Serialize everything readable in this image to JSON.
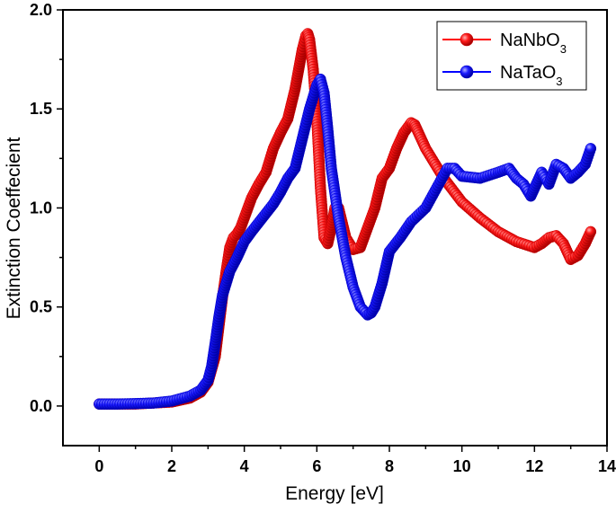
{
  "chart_data": {
    "type": "scatter",
    "title": "",
    "xlabel": "Energy [eV]",
    "ylabel": "Extinction Coeffecient",
    "xlim": [
      -1,
      14
    ],
    "ylim": [
      -0.2,
      2.0
    ],
    "xticks": [
      0,
      2,
      4,
      6,
      8,
      10,
      12,
      14
    ],
    "yticks": [
      0.0,
      0.5,
      1.0,
      1.5,
      2.0
    ],
    "xtick_labels": [
      "0",
      "2",
      "4",
      "6",
      "8",
      "10",
      "12",
      "14"
    ],
    "ytick_labels": [
      "0.0",
      "0.5",
      "1.0",
      "1.5",
      "2.0"
    ],
    "legend_position": "top-right",
    "series": [
      {
        "name": "NaNbO",
        "subscript": "3",
        "color": "#ff0000",
        "x": [
          0,
          0.5,
          1.0,
          1.5,
          2.0,
          2.5,
          2.8,
          3.0,
          3.2,
          3.3,
          3.4,
          3.5,
          3.6,
          3.7,
          3.8,
          3.9,
          4.0,
          4.2,
          4.4,
          4.6,
          4.8,
          5.0,
          5.2,
          5.4,
          5.5,
          5.6,
          5.7,
          5.75,
          5.8,
          5.9,
          6.0,
          6.1,
          6.2,
          6.3,
          6.4,
          6.5,
          6.6,
          6.8,
          7.0,
          7.2,
          7.4,
          7.6,
          7.8,
          8.0,
          8.2,
          8.4,
          8.6,
          8.7,
          8.8,
          9.0,
          9.5,
          10.0,
          10.5,
          11.0,
          11.5,
          12.0,
          12.2,
          12.4,
          12.6,
          12.8,
          13.0,
          13.2,
          13.4,
          13.55
        ],
        "y": [
          0.01,
          0.01,
          0.01,
          0.015,
          0.02,
          0.04,
          0.07,
          0.12,
          0.25,
          0.4,
          0.55,
          0.68,
          0.8,
          0.85,
          0.87,
          0.9,
          0.95,
          1.05,
          1.12,
          1.18,
          1.3,
          1.38,
          1.45,
          1.6,
          1.7,
          1.8,
          1.87,
          1.88,
          1.85,
          1.7,
          1.45,
          1.1,
          0.85,
          0.82,
          0.9,
          1.0,
          1.0,
          0.85,
          0.79,
          0.8,
          0.9,
          1.0,
          1.15,
          1.2,
          1.3,
          1.38,
          1.43,
          1.42,
          1.38,
          1.3,
          1.15,
          1.03,
          0.95,
          0.88,
          0.83,
          0.8,
          0.82,
          0.85,
          0.86,
          0.82,
          0.74,
          0.76,
          0.82,
          0.88
        ]
      },
      {
        "name": "NaTaO",
        "subscript": "3",
        "color": "#0000ff",
        "x": [
          0,
          0.5,
          1.0,
          1.5,
          2.0,
          2.5,
          2.8,
          3.0,
          3.1,
          3.2,
          3.3,
          3.4,
          3.5,
          3.6,
          3.8,
          4.0,
          4.2,
          4.5,
          4.8,
          5.0,
          5.2,
          5.4,
          5.6,
          5.8,
          6.0,
          6.1,
          6.2,
          6.3,
          6.4,
          6.6,
          6.8,
          7.0,
          7.2,
          7.4,
          7.5,
          7.6,
          7.8,
          8.0,
          8.3,
          8.6,
          9.0,
          9.3,
          9.6,
          9.8,
          10.0,
          10.5,
          11.0,
          11.3,
          11.5,
          11.7,
          11.9,
          12.0,
          12.2,
          12.4,
          12.6,
          12.8,
          13.0,
          13.2,
          13.4,
          13.55
        ],
        "y": [
          0.01,
          0.01,
          0.012,
          0.015,
          0.025,
          0.05,
          0.08,
          0.13,
          0.2,
          0.32,
          0.45,
          0.56,
          0.62,
          0.68,
          0.75,
          0.83,
          0.88,
          0.95,
          1.02,
          1.08,
          1.15,
          1.2,
          1.35,
          1.5,
          1.62,
          1.65,
          1.58,
          1.4,
          1.2,
          0.95,
          0.75,
          0.6,
          0.5,
          0.46,
          0.47,
          0.5,
          0.62,
          0.78,
          0.85,
          0.93,
          1.0,
          1.1,
          1.2,
          1.2,
          1.16,
          1.15,
          1.18,
          1.2,
          1.15,
          1.12,
          1.06,
          1.1,
          1.18,
          1.12,
          1.22,
          1.2,
          1.15,
          1.18,
          1.22,
          1.3
        ]
      }
    ]
  }
}
